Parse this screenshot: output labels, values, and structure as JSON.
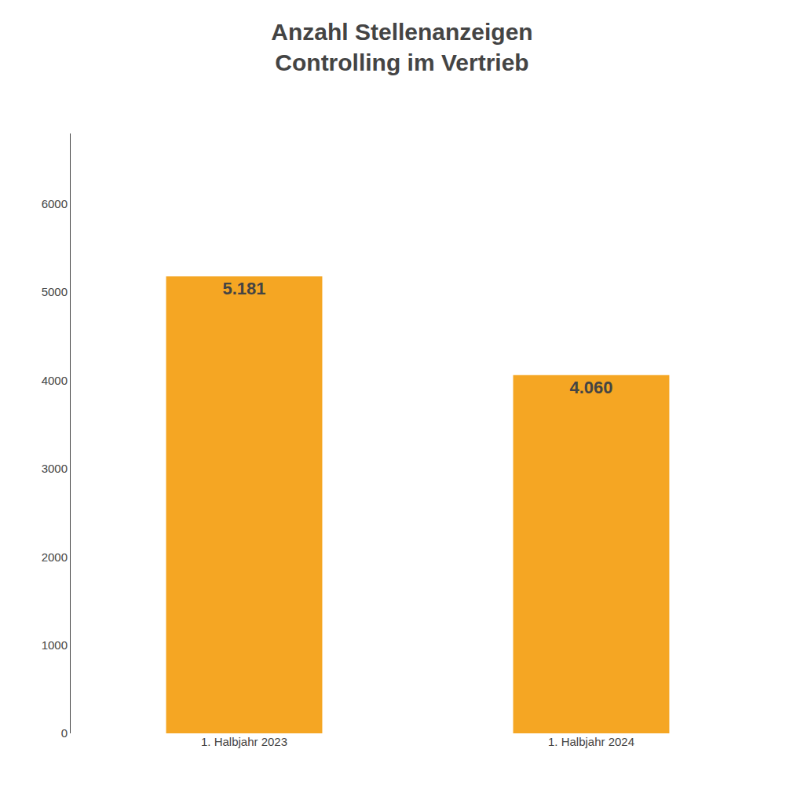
{
  "chart_data": {
    "type": "bar",
    "title": "Anzahl Stellenanzeigen\nControlling im Vertrieb",
    "categories": [
      "1. Halbjahr 2023",
      "1. Halbjahr 2024"
    ],
    "values": [
      5181,
      4060
    ],
    "value_labels": [
      "5.181",
      "4.060"
    ],
    "data_labels": true,
    "color": "#F5A623",
    "ylim": [
      0,
      6800
    ],
    "yticks": [
      0,
      1000,
      2000,
      3000,
      4000,
      5000,
      6000
    ],
    "grid": false
  }
}
